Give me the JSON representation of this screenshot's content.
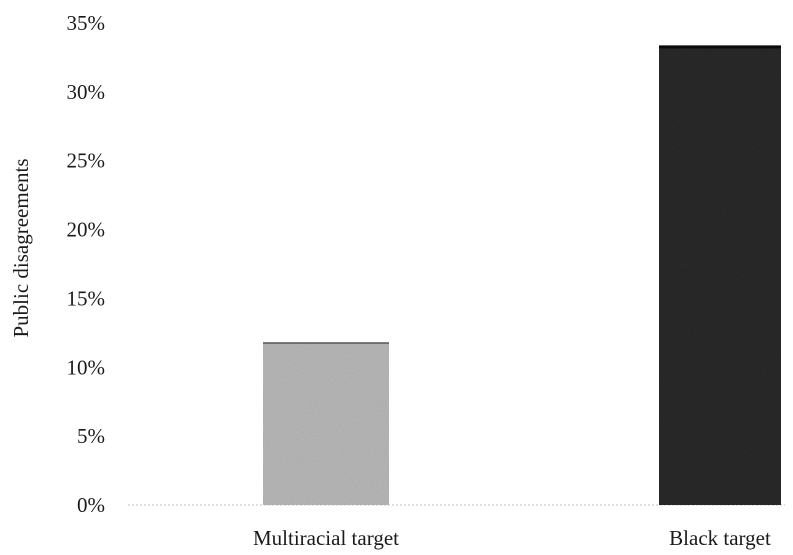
{
  "chart_data": {
    "type": "bar",
    "title": "",
    "xlabel": "",
    "ylabel": "Public disagreements",
    "categories": [
      "Multiracial target",
      "Black target"
    ],
    "values": [
      11.8,
      33.3
    ],
    "ylim": [
      0,
      35
    ],
    "yticks": [
      0,
      5,
      10,
      15,
      20,
      25,
      30,
      35
    ],
    "ytick_labels": [
      "0%",
      "5%",
      "10%",
      "15%",
      "20%",
      "25%",
      "30%",
      "35%"
    ],
    "grid": false,
    "legend": "none",
    "colors": [
      "#b8b8b8",
      "#2a2a2a"
    ]
  }
}
